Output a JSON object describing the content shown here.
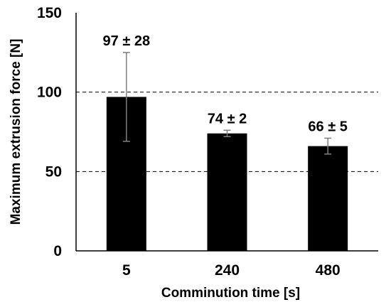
{
  "chart_data": {
    "type": "bar",
    "categories": [
      "5",
      "240",
      "480"
    ],
    "values": [
      97,
      74,
      66
    ],
    "errors": [
      28,
      2,
      5
    ],
    "data_labels": [
      "97 ± 28",
      "74 ± 2",
      "66 ± 5"
    ],
    "xlabel": "Comminution time [s]",
    "ylabel": "Maximum extrusion force [N]",
    "ylim": [
      0,
      150
    ],
    "yticks": [
      0,
      50,
      100,
      150
    ],
    "grid": "dashed horizontal at 50 and 100",
    "bar_color": "#000000",
    "error_bar_color": "#7f7f7f"
  }
}
